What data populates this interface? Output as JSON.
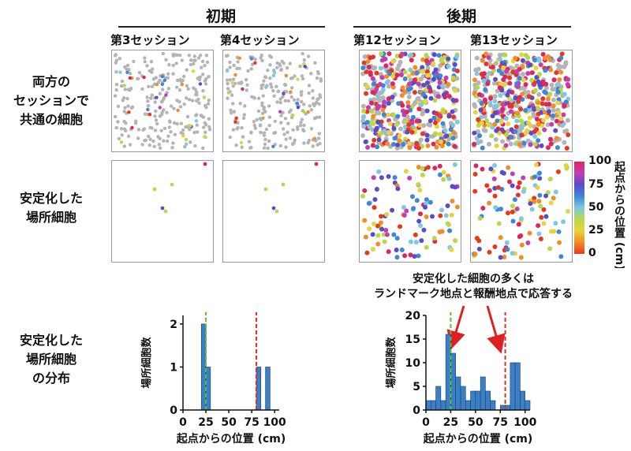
{
  "headers": {
    "early": "初期",
    "late": "後期",
    "sessions": [
      "第3セッション",
      "第4セッション",
      "第12セッション",
      "第13セッション"
    ]
  },
  "row_labels": {
    "common": "両方の\nセッションで\n共通の細胞",
    "stable": "安定化した\n場所細胞",
    "distribution": "安定化した\n場所細胞\nの分布"
  },
  "colorbar": {
    "label": "起点からの位置 (cm)",
    "ticks": [
      "100",
      "75",
      "50",
      "25",
      "0"
    ],
    "colors": [
      "#e0245e",
      "#c43db3",
      "#5a4bc9",
      "#3f86d6",
      "#7ec8e3",
      "#b5d94a",
      "#e8d43a",
      "#f28c28",
      "#e8381c"
    ]
  },
  "annotation": "安定化した細胞の多くは\nランドマーク地点と報酬地点で応答する",
  "colors": {
    "bar": "#3b7fc4",
    "green_line": "#5cbf3a",
    "red_line": "#e22d2d",
    "gray_cell": "#b4b4b4",
    "arrow": "#e02020"
  },
  "chart_data": [
    {
      "type": "bar",
      "panel": "early",
      "xlabel": "起点からの位置 (cm)",
      "ylabel": "場所細胞数",
      "xticks": [
        0,
        25,
        50,
        75,
        100
      ],
      "yticks": [
        0,
        1,
        2
      ],
      "xlim": [
        0,
        105
      ],
      "ylim": [
        0,
        2.2
      ],
      "bin_width": 5,
      "bins": [
        {
          "x": 20,
          "count": 2
        },
        {
          "x": 25,
          "count": 1
        },
        {
          "x": 80,
          "count": 1
        },
        {
          "x": 90,
          "count": 1
        }
      ],
      "reference_lines": [
        {
          "x": 25,
          "color": "green"
        },
        {
          "x": 80,
          "color": "red"
        }
      ]
    },
    {
      "type": "bar",
      "panel": "late",
      "xlabel": "起点からの位置 (cm)",
      "ylabel": "場所細胞数",
      "xticks": [
        0,
        25,
        50,
        75,
        100
      ],
      "yticks": [
        0,
        5,
        10,
        15,
        20
      ],
      "xlim": [
        0,
        105
      ],
      "ylim": [
        0,
        20
      ],
      "bin_width": 5,
      "bins": [
        {
          "x": 0,
          "count": 2
        },
        {
          "x": 5,
          "count": 2
        },
        {
          "x": 10,
          "count": 5
        },
        {
          "x": 15,
          "count": 2
        },
        {
          "x": 20,
          "count": 16
        },
        {
          "x": 25,
          "count": 12
        },
        {
          "x": 30,
          "count": 7
        },
        {
          "x": 35,
          "count": 5
        },
        {
          "x": 40,
          "count": 2
        },
        {
          "x": 45,
          "count": 4
        },
        {
          "x": 50,
          "count": 4
        },
        {
          "x": 55,
          "count": 7
        },
        {
          "x": 60,
          "count": 4
        },
        {
          "x": 65,
          "count": 2
        },
        {
          "x": 70,
          "count": 0
        },
        {
          "x": 75,
          "count": 1
        },
        {
          "x": 80,
          "count": 1
        },
        {
          "x": 85,
          "count": 10
        },
        {
          "x": 90,
          "count": 10
        },
        {
          "x": 95,
          "count": 4
        },
        {
          "x": 100,
          "count": 2
        }
      ],
      "reference_lines": [
        {
          "x": 25,
          "color": "green"
        },
        {
          "x": 80,
          "color": "red"
        }
      ]
    }
  ]
}
